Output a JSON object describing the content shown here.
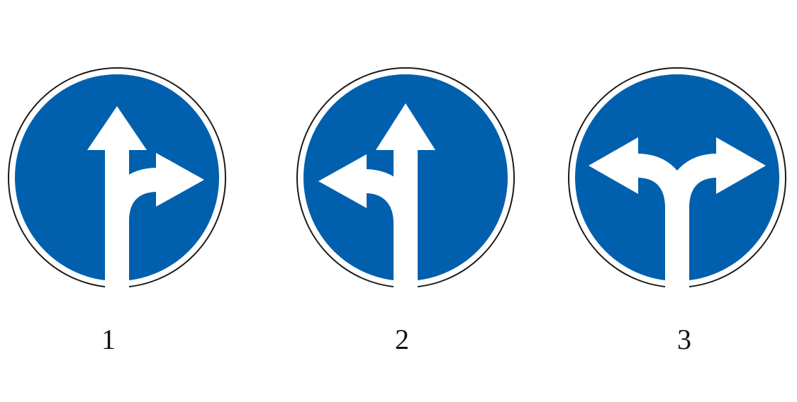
{
  "colors": {
    "sign_blue": "#0060ae",
    "arrow_white": "#ffffff",
    "ring_outline": "#1a1a1a"
  },
  "signs": [
    {
      "number": "1",
      "icon": "straight-or-right-arrow-icon"
    },
    {
      "number": "2",
      "icon": "straight-or-left-arrow-icon"
    },
    {
      "number": "3",
      "icon": "left-or-right-arrow-icon"
    }
  ]
}
